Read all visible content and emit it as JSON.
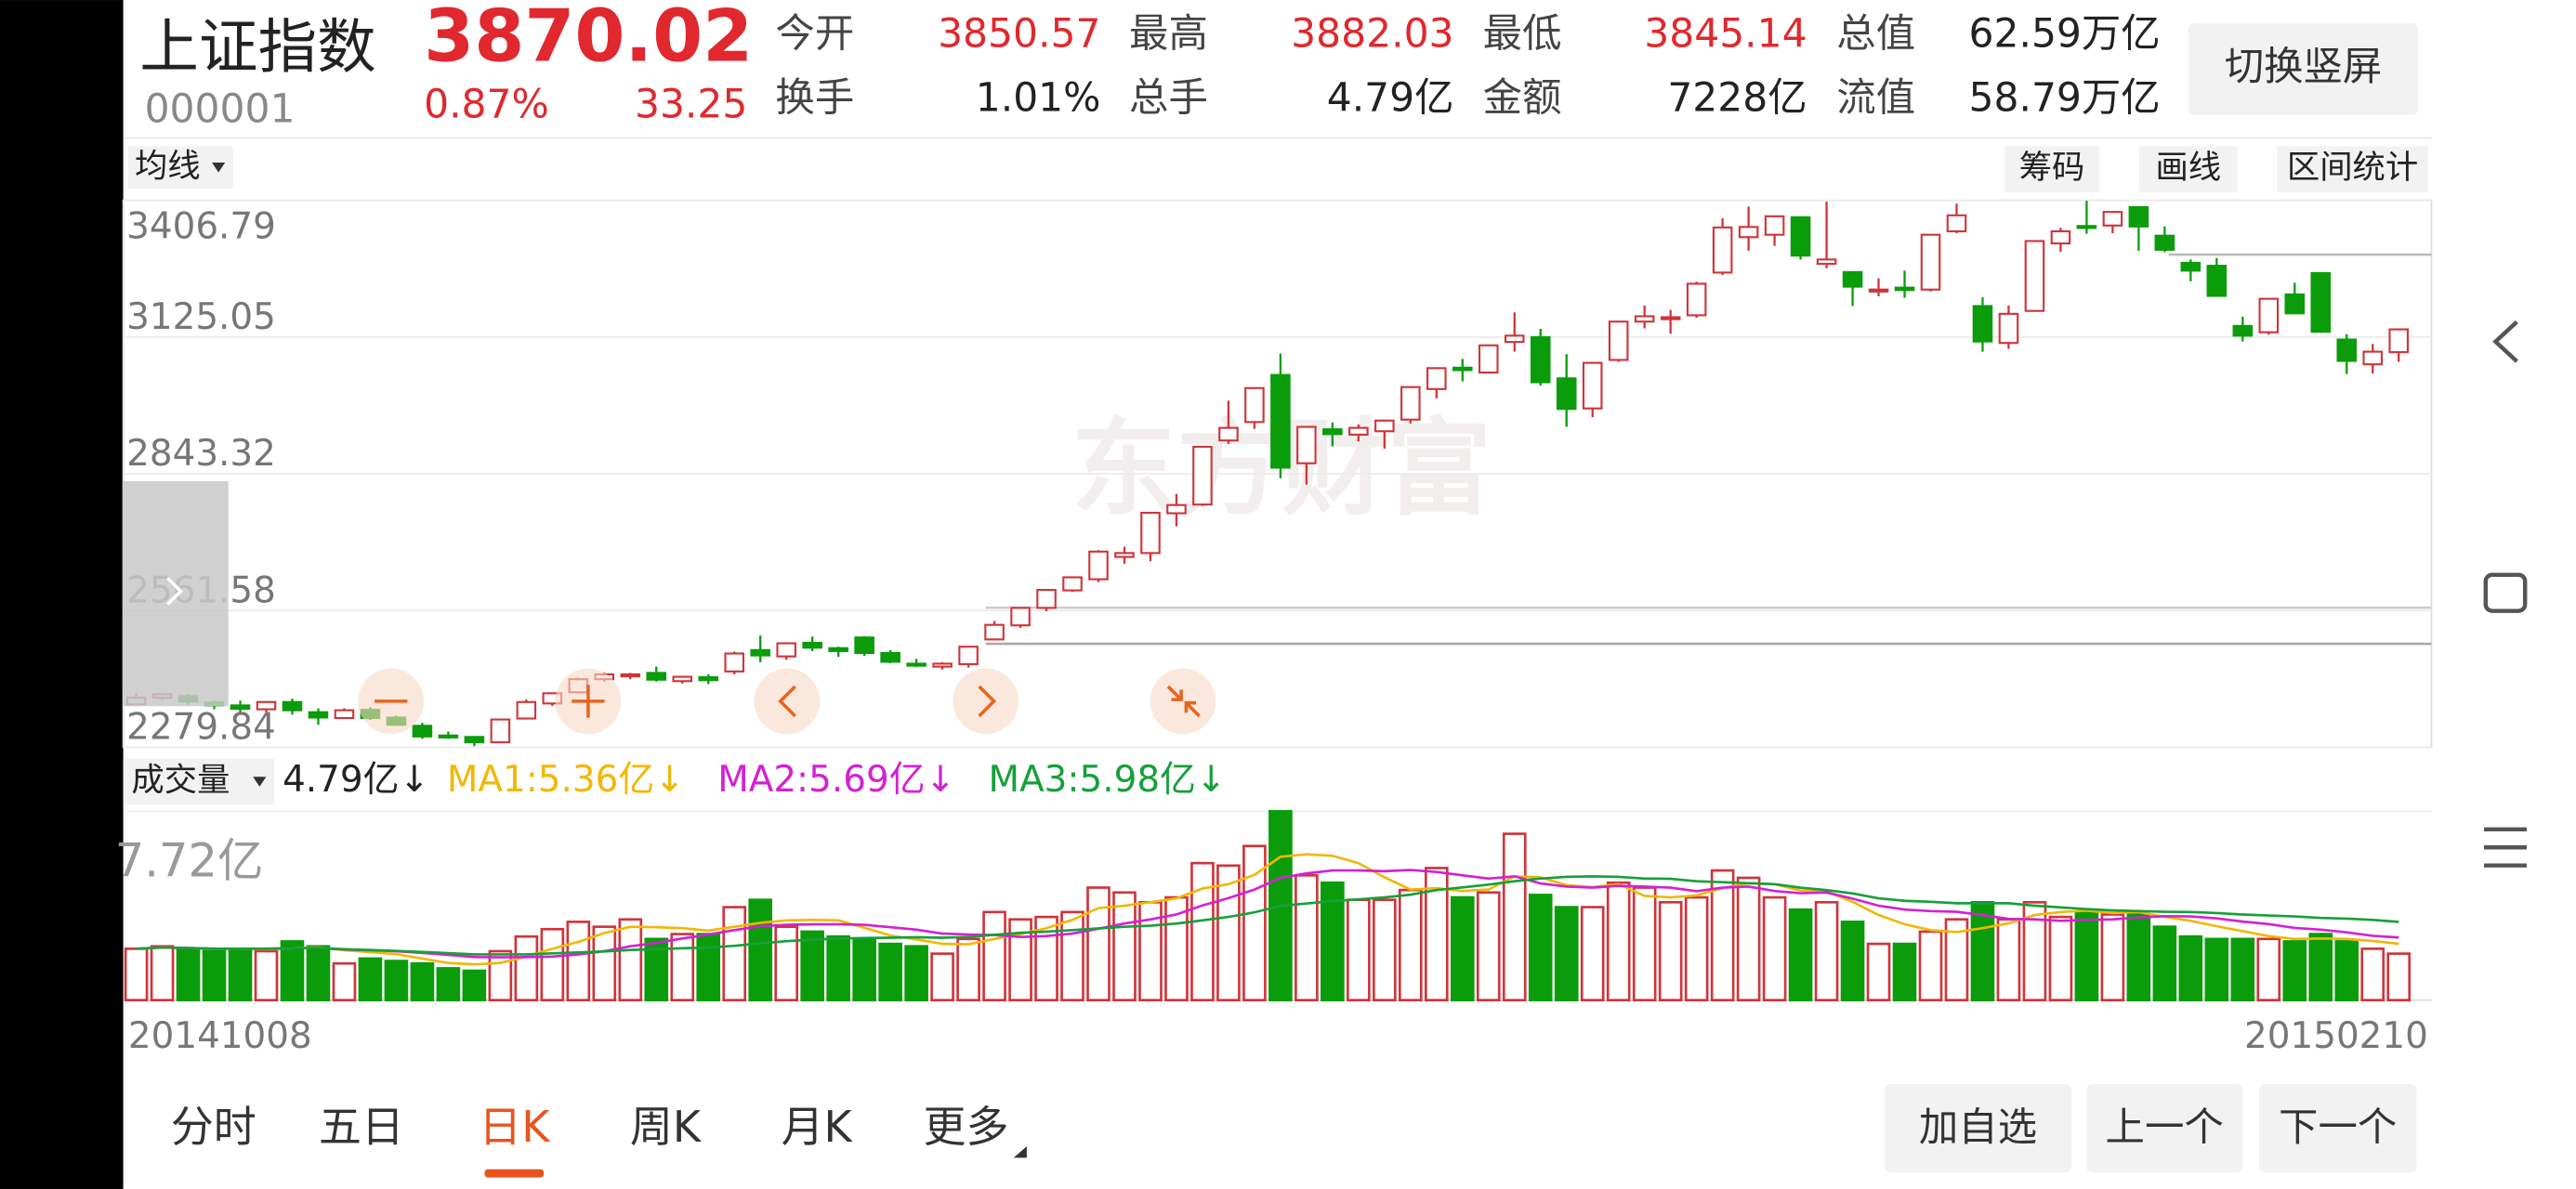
{
  "header": {
    "title": "上证指数",
    "code": "000001",
    "price": 3870.02,
    "change_percent": "0.87%",
    "change": 33.25,
    "stats": [
      {
        "label": "今开",
        "value": 3850.57,
        "color": "#e0282e"
      },
      {
        "label": "最高",
        "value": 3882.03,
        "color": "#e0282e"
      },
      {
        "label": "最低",
        "value": 3845.14,
        "color": "#e0282e"
      },
      {
        "label": "总值",
        "value": "62.59万亿",
        "color": "#222222"
      },
      {
        "label": "换手",
        "value": "1.01%",
        "color": "#222222"
      },
      {
        "label": "总手",
        "value": "4.79亿",
        "color": "#222222"
      },
      {
        "label": "金额",
        "value": "7228亿",
        "color": "#222222"
      },
      {
        "label": "流值",
        "value": "58.79万亿",
        "color": "#222222"
      }
    ],
    "button": "切换竖屏"
  },
  "toolbar": {
    "indicator": "均线",
    "buttons": [
      "筹码",
      "画线",
      "区间统计"
    ]
  },
  "watermark": "东方财富",
  "chart_data": [
    {
      "type": "candlestick",
      "up_color": "#d0343a",
      "down_color": "#0a9c0a",
      "grid": true,
      "ylim": [
        2279.84,
        3406.79
      ],
      "yticks": [
        2279.84,
        2561.58,
        2843.32,
        3125.05,
        3406.79
      ],
      "open": [
        2368,
        2382,
        2385,
        2372,
        2366,
        2358,
        2373,
        2352,
        2340,
        2357,
        2341,
        2324,
        2304,
        2301,
        2290,
        2339,
        2370,
        2393,
        2420,
        2428,
        2433,
        2416,
        2424,
        2436,
        2480,
        2467,
        2495,
        2484,
        2506,
        2474,
        2452,
        2446,
        2451,
        2502,
        2531,
        2567,
        2603,
        2626,
        2672,
        2680,
        2762,
        2780,
        2912,
        2950,
        3047,
        2865,
        2935,
        2924,
        2931,
        2955,
        3018,
        3062,
        3052,
        3115,
        3125,
        3040,
        2978,
        3078,
        3157,
        3162,
        3170,
        3258,
        3331,
        3336,
        3372,
        3276,
        3259,
        3223,
        3227,
        3223,
        3343,
        3189,
        3113,
        3179,
        3318,
        3354,
        3355,
        3393,
        3334,
        3278,
        3272,
        3148,
        3135,
        3213,
        3257,
        3120,
        3069,
        3094
      ],
      "high": [
        2391,
        2391,
        2390,
        2376,
        2376,
        2375,
        2380,
        2360,
        2360,
        2362,
        2345,
        2330,
        2312,
        2301,
        2337,
        2378,
        2392,
        2423,
        2434,
        2433,
        2446,
        2427,
        2430,
        2477,
        2510,
        2494,
        2508,
        2487,
        2509,
        2480,
        2462,
        2455,
        2488,
        2540,
        2568,
        2604,
        2632,
        2686,
        2693,
        2765,
        2802,
        2900,
        2994,
        3021,
        3091,
        2941,
        2949,
        2945,
        2955,
        3022,
        3062,
        3080,
        3109,
        3176,
        3142,
        3090,
        3072,
        3158,
        3190,
        3181,
        3239,
        3370,
        3394,
        3374,
        3374,
        3404,
        3260,
        3246,
        3262,
        3337,
        3400,
        3207,
        3190,
        3323,
        3350,
        3406,
        3384,
        3394,
        3353,
        3285,
        3288,
        3167,
        3204,
        3237,
        3258,
        3131,
        3111,
        3143
      ],
      "low": [
        2366,
        2377,
        2367,
        2358,
        2352,
        2352,
        2347,
        2326,
        2338,
        2336,
        2324,
        2297,
        2297,
        2282,
        2289,
        2337,
        2365,
        2391,
        2415,
        2420,
        2415,
        2411,
        2410,
        2430,
        2455,
        2460,
        2478,
        2466,
        2468,
        2453,
        2445,
        2440,
        2444,
        2500,
        2526,
        2560,
        2600,
        2620,
        2658,
        2663,
        2735,
        2777,
        2905,
        2936,
        2834,
        2821,
        2900,
        2910,
        2895,
        2947,
        2999,
        3034,
        3050,
        3095,
        3025,
        2940,
        2960,
        3074,
        3143,
        3132,
        3165,
        3253,
        3303,
        3313,
        3285,
        3267,
        3189,
        3209,
        3206,
        3219,
        3339,
        3095,
        3101,
        3179,
        3301,
        3338,
        3339,
        3303,
        3300,
        3240,
        3209,
        3116,
        3130,
        3174,
        3134,
        3049,
        3050,
        3074
      ],
      "close": [
        2382,
        2389,
        2374,
        2366,
        2359,
        2373,
        2356,
        2341,
        2356,
        2340,
        2326,
        2302,
        2302,
        2290,
        2337,
        2373,
        2391,
        2420,
        2430,
        2430,
        2419,
        2425,
        2418,
        2473,
        2469,
        2494,
        2485,
        2478,
        2474,
        2456,
        2450,
        2452,
        2487,
        2532,
        2567,
        2604,
        2630,
        2683,
        2680,
        2763,
        2779,
        2899,
        2938,
        3020,
        2856,
        2940,
        2925,
        2938,
        2953,
        3022,
        3061,
        3057,
        3108,
        3128,
        3032,
        2977,
        3072,
        3157,
        3168,
        3166,
        3235,
        3351,
        3352,
        3374,
        3293,
        3285,
        3229,
        3223,
        3222,
        3336,
        3376,
        3116,
        3173,
        3323,
        3343,
        3351,
        3383,
        3353,
        3305,
        3262,
        3210,
        3128,
        3204,
        3174,
        3136,
        3076,
        3095,
        3141
      ]
    },
    {
      "type": "bar",
      "title": "成交量",
      "current": "4.79亿↓",
      "ylim": [
        0,
        7.72
      ],
      "yticks": [
        {
          "value": 7.72,
          "label": "7.72亿"
        }
      ],
      "categories": [
        "20141008",
        null,
        null,
        null,
        null,
        null,
        null,
        null,
        null,
        null,
        null,
        null,
        null,
        null,
        null,
        null,
        null,
        null,
        null,
        null,
        null,
        null,
        null,
        null,
        null,
        null,
        null,
        null,
        null,
        null,
        null,
        null,
        null,
        null,
        null,
        null,
        null,
        null,
        null,
        null,
        null,
        null,
        null,
        null,
        null,
        null,
        null,
        null,
        null,
        null,
        null,
        null,
        null,
        null,
        null,
        null,
        null,
        null,
        null,
        null,
        null,
        null,
        null,
        null,
        null,
        null,
        null,
        null,
        null,
        null,
        null,
        null,
        null,
        null,
        null,
        null,
        null,
        null,
        null,
        null,
        null,
        null,
        null,
        null,
        null,
        null,
        null,
        "20150210"
      ],
      "values": [
        2.1,
        2.2,
        2.1,
        2.0,
        2.1,
        2.0,
        2.4,
        2.2,
        1.5,
        1.7,
        1.6,
        1.5,
        1.3,
        1.2,
        2.0,
        2.6,
        2.9,
        3.2,
        3.0,
        3.3,
        2.5,
        2.7,
        2.7,
        3.8,
        4.1,
        3.0,
        2.8,
        2.6,
        2.5,
        2.3,
        2.2,
        1.9,
        2.5,
        3.6,
        3.3,
        3.4,
        3.6,
        4.6,
        4.4,
        4.0,
        4.2,
        5.6,
        5.5,
        6.3,
        7.72,
        5.1,
        4.8,
        4.1,
        4.1,
        4.5,
        5.4,
        4.2,
        4.4,
        6.8,
        4.3,
        3.8,
        3.8,
        4.8,
        4.6,
        4.0,
        4.2,
        5.3,
        5.0,
        4.2,
        3.7,
        4.0,
        3.2,
        2.3,
        2.3,
        2.8,
        3.3,
        4.0,
        3.3,
        4.0,
        3.4,
        3.6,
        3.5,
        3.5,
        3.0,
        2.6,
        2.5,
        2.5,
        2.5,
        2.4,
        2.7,
        2.4,
        2.1,
        1.9
      ],
      "series": [
        {
          "name": "MA1:5.36亿↓",
          "color": "#f2b705",
          "values": [
            2.1,
            2.15,
            2.13,
            2.1,
            2.1,
            2.08,
            2.12,
            2.16,
            2.04,
            1.96,
            1.88,
            1.7,
            1.52,
            1.46,
            1.52,
            1.78,
            2.1,
            2.38,
            2.74,
            3.0,
            2.98,
            2.94,
            2.84,
            3.0,
            3.16,
            3.26,
            3.28,
            3.26,
            2.96,
            2.64,
            2.48,
            2.3,
            2.28,
            2.5,
            2.7,
            2.94,
            3.28,
            3.76,
            3.86,
            4.0,
            4.16,
            4.56,
            4.74,
            5.12,
            5.86,
            5.96,
            5.9,
            5.6,
            5.02,
            4.52,
            4.58,
            4.46,
            4.52,
            5.06,
            5.02,
            4.7,
            4.62,
            4.74,
            4.26,
            4.2,
            4.28,
            4.58,
            4.78,
            4.74,
            4.48,
            4.44,
            4.02,
            3.48,
            3.1,
            2.86,
            2.78,
            2.94,
            3.14,
            3.48,
            3.6,
            3.66,
            3.56,
            3.6,
            3.4,
            3.24,
            3.02,
            2.82,
            2.62,
            2.5,
            2.52,
            2.5,
            2.42,
            2.3
          ]
        },
        {
          "name": "MA2:5.69亿↓",
          "color": "#d321d3",
          "values": [
            2.1,
            2.15,
            2.13,
            2.1,
            2.1,
            2.1,
            2.12,
            2.13,
            2.07,
            2.04,
            2.0,
            1.93,
            1.85,
            1.76,
            1.75,
            1.76,
            1.78,
            1.87,
            2.0,
            2.2,
            2.34,
            2.52,
            2.68,
            2.86,
            3.02,
            3.08,
            3.1,
            3.1,
            3.08,
            2.98,
            2.88,
            2.72,
            2.68,
            2.66,
            2.58,
            2.62,
            2.72,
            2.92,
            3.13,
            3.3,
            3.5,
            3.87,
            4.17,
            4.52,
            5.0,
            5.18,
            5.3,
            5.3,
            5.27,
            5.32,
            5.24,
            5.1,
            4.97,
            5.06,
            4.77,
            4.64,
            4.6,
            4.67,
            4.64,
            4.6,
            4.45,
            4.6,
            4.64,
            4.46,
            4.37,
            4.4,
            4.15,
            3.86,
            3.7,
            3.64,
            3.61,
            3.48,
            3.32,
            3.3,
            3.24,
            3.28,
            3.3,
            3.38,
            3.43,
            3.42,
            3.34,
            3.21,
            3.11,
            2.95,
            2.88,
            2.77,
            2.63,
            2.56
          ]
        },
        {
          "name": "MA3:5.98亿↓",
          "color": "#15a03a",
          "values": [
            2.1,
            2.15,
            2.13,
            2.1,
            2.1,
            2.1,
            2.12,
            2.13,
            2.08,
            2.05,
            2.01,
            1.97,
            1.92,
            1.87,
            1.87,
            1.87,
            1.91,
            1.95,
            1.99,
            2.05,
            2.08,
            2.12,
            2.15,
            2.22,
            2.32,
            2.41,
            2.47,
            2.52,
            2.54,
            2.55,
            2.57,
            2.55,
            2.58,
            2.67,
            2.75,
            2.8,
            2.86,
            2.93,
            3.0,
            3.04,
            3.13,
            3.26,
            3.4,
            3.59,
            3.85,
            3.95,
            4.05,
            4.12,
            4.2,
            4.31,
            4.5,
            4.61,
            4.72,
            4.86,
            4.97,
            5.04,
            5.06,
            5.04,
            4.97,
            4.96,
            4.86,
            4.82,
            4.78,
            4.74,
            4.6,
            4.5,
            4.36,
            4.16,
            4.06,
            4.02,
            3.96,
            3.96,
            3.96,
            3.86,
            3.79,
            3.72,
            3.67,
            3.64,
            3.61,
            3.6,
            3.56,
            3.5,
            3.46,
            3.42,
            3.36,
            3.33,
            3.28,
            3.2
          ]
        }
      ]
    }
  ],
  "tabs": {
    "items": [
      "分时",
      "五日",
      "日K",
      "周K",
      "月K",
      "更多"
    ],
    "active": 2
  },
  "buttons": [
    "加自选",
    "上一个",
    "下一个"
  ]
}
